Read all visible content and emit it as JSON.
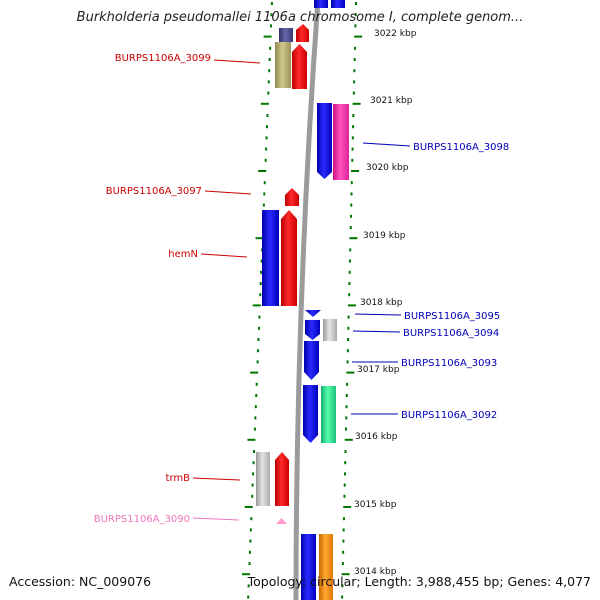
{
  "title": "Burkholderia pseudomallei 1106a chromosome I, complete genom...",
  "footer": {
    "accession": "Accession: NC_009076",
    "summary": "Topology: circular; Length: 3,988,455 bp; Genes: 4,077"
  },
  "colors": {
    "backbone": "#999999",
    "tick": "#007700",
    "forward_label": "#cc0000",
    "reverse_label": "#0000bb",
    "pink_label": "#ee77bb"
  },
  "scale_labels": [
    "3022 kbp",
    "3021 kbp",
    "3020 kbp",
    "3019 kbp",
    "3018 kbp",
    "3017 kbp",
    "3016 kbp",
    "3015 kbp",
    "3014 kbp"
  ],
  "gene_labels": [
    {
      "text": "BURPS1106A_3099",
      "color": "forward_label"
    },
    {
      "text": "BURPS1106A_3097",
      "color": "forward_label"
    },
    {
      "text": "hemN",
      "color": "forward_label"
    },
    {
      "text": "trmB",
      "color": "forward_label"
    },
    {
      "text": "BURPS1106A_3090",
      "color": "pink_label"
    },
    {
      "text": "BURPS1106A_3098",
      "color": "reverse_label"
    },
    {
      "text": "BURPS1106A_3095",
      "color": "reverse_label"
    },
    {
      "text": "BURPS1106A_3094",
      "color": "reverse_label"
    },
    {
      "text": "BURPS1106A_3093",
      "color": "reverse_label"
    },
    {
      "text": "BURPS1106A_3092",
      "color": "reverse_label"
    }
  ]
}
